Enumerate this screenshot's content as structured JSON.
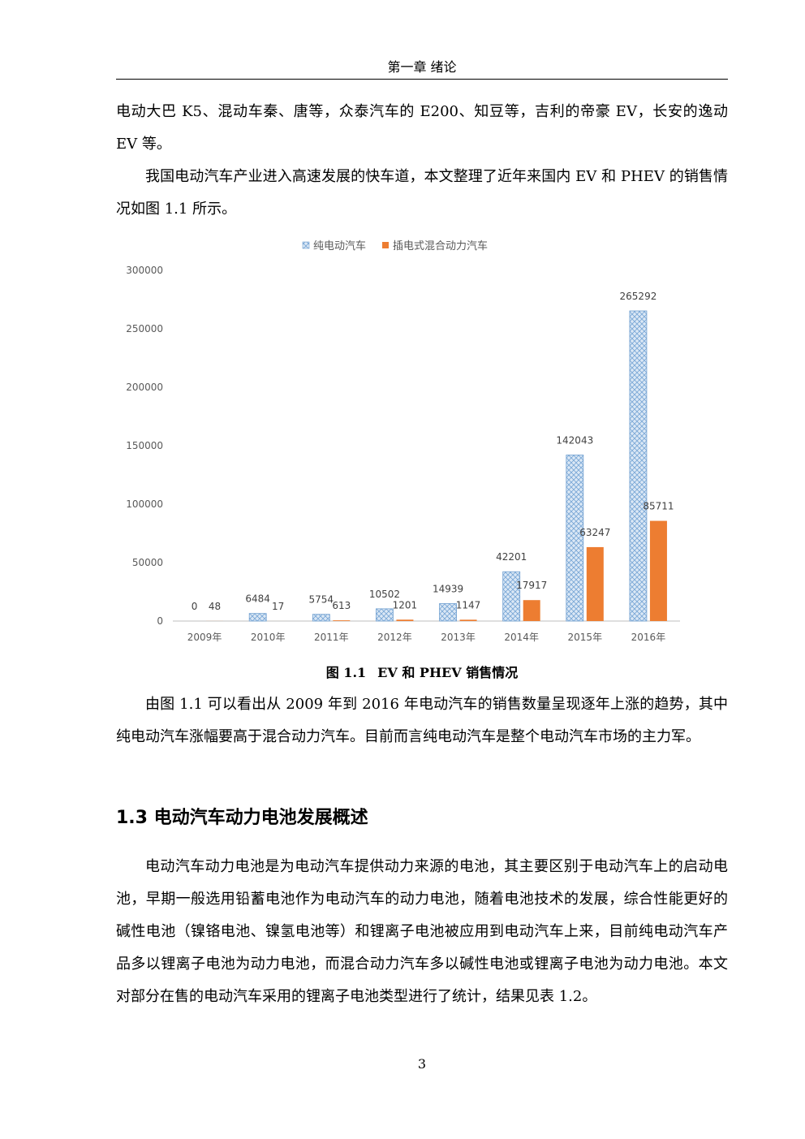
{
  "header": {
    "chapter_title": "第一章  绪论"
  },
  "paragraphs": {
    "p1": "电动大巴 K5、混动车秦、唐等，众泰汽车的 E200、知豆等，吉利的帝豪 EV，长安的逸动 EV 等。",
    "p2": "我国电动汽车产业进入高速发展的快车道，本文整理了近年来国内 EV 和 PHEV 的销售情况如图 1.1 所示。",
    "p3": "由图 1.1 可以看出从 2009 年到 2016 年电动汽车的销售数量呈现逐年上涨的趋势，其中纯电动汽车涨幅要高于混合动力汽车。目前而言纯电动汽车是整个电动汽车市场的主力军。",
    "p4": "电动汽车动力电池是为电动汽车提供动力来源的电池，其主要区别于电动汽车上的启动电池，早期一般选用铅蓄电池作为电动汽车的动力电池，随着电池技术的发展，综合性能更好的碱性电池（镍铬电池、镍氢电池等）和锂离子电池被应用到电动汽车上来，目前纯电动汽车产品多以锂离子电池为动力电池，而混合动力汽车多以碱性电池或锂离子电池为动力电池。本文对部分在售的电动汽车采用的锂离子电池类型进行了统计，结果见表 1.2。"
  },
  "figure": {
    "number": "图 1.1",
    "title": "EV 和 PHEV 销售情况"
  },
  "section": {
    "heading": "1.3 电动汽车动力电池发展概述"
  },
  "page_number": "3",
  "chart_data": {
    "type": "bar",
    "categories": [
      "2009年",
      "2010年",
      "2011年",
      "2012年",
      "2013年",
      "2014年",
      "2015年",
      "2016年"
    ],
    "series": [
      {
        "name": "纯电动汽车",
        "values": [
          0,
          6484,
          5754,
          10502,
          14939,
          42201,
          142043,
          265292
        ],
        "color": "#9dc3e6",
        "pattern": "crosshatch"
      },
      {
        "name": "插电式混合动力汽车",
        "values": [
          48,
          17,
          613,
          1201,
          1147,
          17917,
          63247,
          85711
        ],
        "color": "#ed7d31",
        "pattern": "solid"
      }
    ],
    "ylim": [
      0,
      300000
    ],
    "yticks": [
      0,
      50000,
      100000,
      150000,
      200000,
      250000,
      300000
    ],
    "grid": false,
    "legend": "top-center",
    "data_labels": true
  }
}
